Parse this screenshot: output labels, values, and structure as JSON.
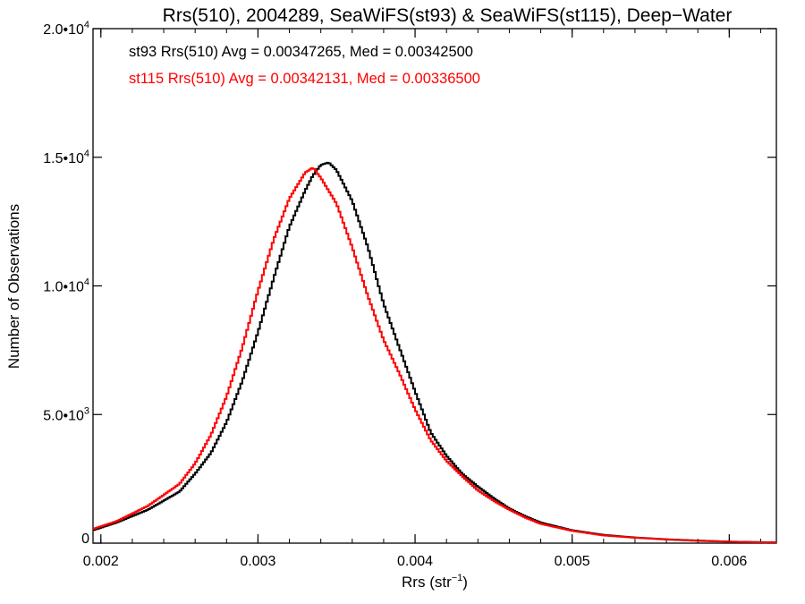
{
  "chart_data": {
    "type": "histogram-step",
    "title": "Rrs(510), 2004289, SeaWiFS(st93) & SeaWiFS(st115), Deep−Water",
    "xlabel": {
      "text": "Rrs (str",
      "sup": "−1",
      "close": ")"
    },
    "ylabel": "Number of Observations",
    "xlim": [
      0.00195,
      0.0063
    ],
    "ylim": [
      0,
      20000
    ],
    "x_ticks": [
      {
        "value": 0.002,
        "label": "0.002"
      },
      {
        "value": 0.003,
        "label": "0.003"
      },
      {
        "value": 0.004,
        "label": "0.004"
      },
      {
        "value": 0.005,
        "label": "0.005"
      },
      {
        "value": 0.006,
        "label": "0.006"
      }
    ],
    "y_ticks": [
      {
        "value": 0,
        "mant": "0",
        "exp": ""
      },
      {
        "value": 5000,
        "mant": "5.0•10",
        "exp": "3"
      },
      {
        "value": 10000,
        "mant": "1.0•10",
        "exp": "4"
      },
      {
        "value": 15000,
        "mant": "1.5•10",
        "exp": "4"
      },
      {
        "value": 20000,
        "mant": "2.0•10",
        "exp": "4"
      }
    ],
    "series": [
      {
        "name": "st93",
        "color": "#000000",
        "stats": "st93 Rrs(510) Avg = 0.00347265, Med = 0.00342500",
        "points": [
          [
            0.00195,
            500
          ],
          [
            0.0021,
            800
          ],
          [
            0.0023,
            1300
          ],
          [
            0.0025,
            2000
          ],
          [
            0.0026,
            2700
          ],
          [
            0.0027,
            3500
          ],
          [
            0.0028,
            4700
          ],
          [
            0.0029,
            6300
          ],
          [
            0.003,
            8200
          ],
          [
            0.0031,
            10300
          ],
          [
            0.0032,
            12300
          ],
          [
            0.0033,
            13700
          ],
          [
            0.00335,
            14300
          ],
          [
            0.0034,
            14700
          ],
          [
            0.00345,
            14800
          ],
          [
            0.0035,
            14500
          ],
          [
            0.0036,
            13300
          ],
          [
            0.0037,
            11500
          ],
          [
            0.0038,
            9300
          ],
          [
            0.0039,
            7600
          ],
          [
            0.004,
            5900
          ],
          [
            0.0041,
            4300
          ],
          [
            0.0042,
            3400
          ],
          [
            0.0043,
            2700
          ],
          [
            0.0044,
            2200
          ],
          [
            0.0045,
            1750
          ],
          [
            0.0046,
            1350
          ],
          [
            0.0047,
            1050
          ],
          [
            0.0048,
            800
          ],
          [
            0.005,
            500
          ],
          [
            0.0052,
            320
          ],
          [
            0.0054,
            220
          ],
          [
            0.0056,
            150
          ],
          [
            0.0058,
            100
          ],
          [
            0.006,
            60
          ],
          [
            0.0063,
            30
          ]
        ]
      },
      {
        "name": "st115",
        "color": "#ff0000",
        "stats": "st115 Rrs(510) Avg = 0.00342131, Med = 0.00336500",
        "points": [
          [
            0.00195,
            550
          ],
          [
            0.0021,
            850
          ],
          [
            0.0023,
            1450
          ],
          [
            0.0025,
            2300
          ],
          [
            0.0026,
            3100
          ],
          [
            0.0027,
            4200
          ],
          [
            0.0028,
            5700
          ],
          [
            0.0029,
            7600
          ],
          [
            0.003,
            9800
          ],
          [
            0.0031,
            11800
          ],
          [
            0.0032,
            13400
          ],
          [
            0.0033,
            14400
          ],
          [
            0.00335,
            14600
          ],
          [
            0.0034,
            14200
          ],
          [
            0.0035,
            13200
          ],
          [
            0.0036,
            11500
          ],
          [
            0.0037,
            9600
          ],
          [
            0.0038,
            7900
          ],
          [
            0.0039,
            6600
          ],
          [
            0.004,
            5200
          ],
          [
            0.0041,
            4000
          ],
          [
            0.0042,
            3200
          ],
          [
            0.0043,
            2600
          ],
          [
            0.0044,
            2050
          ],
          [
            0.0045,
            1650
          ],
          [
            0.0046,
            1300
          ],
          [
            0.0047,
            1000
          ],
          [
            0.0048,
            750
          ],
          [
            0.005,
            480
          ],
          [
            0.0052,
            300
          ],
          [
            0.0054,
            210
          ],
          [
            0.0056,
            140
          ],
          [
            0.0058,
            90
          ],
          [
            0.006,
            55
          ],
          [
            0.0063,
            25
          ]
        ]
      }
    ]
  }
}
